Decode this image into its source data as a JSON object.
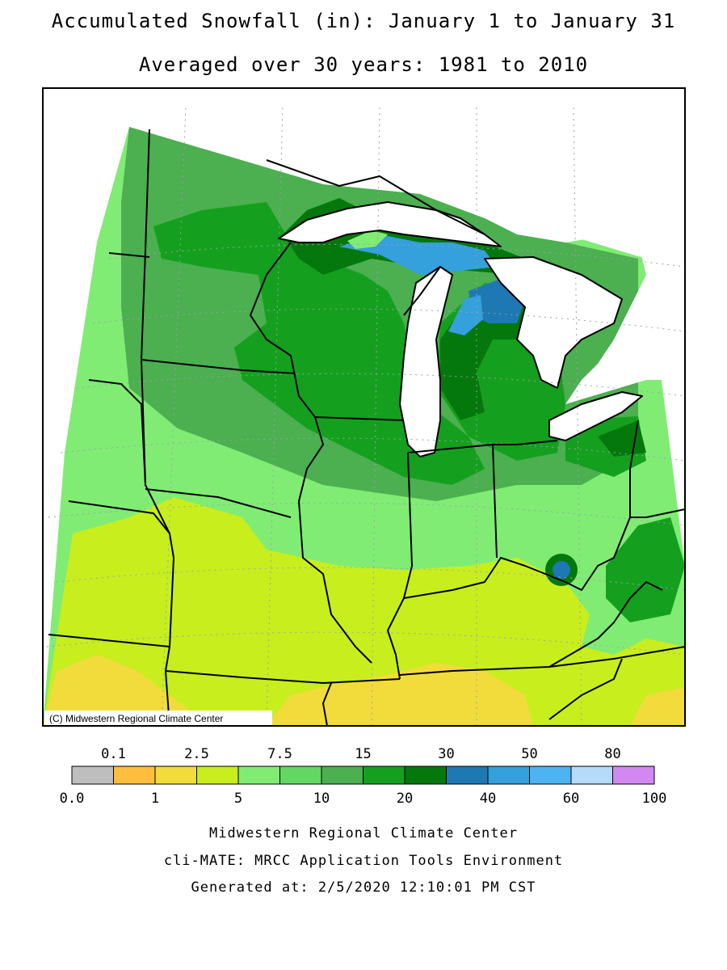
{
  "title_line1": "Accumulated Snowfall (in): January 1 to January 31",
  "title_line2": "Averaged over 30 years: 1981 to 2010",
  "copyright": "(C) Midwestern Regional Climate Center",
  "legend": {
    "bins": [
      {
        "color": "#bebebe"
      },
      {
        "color": "#ffbe3c"
      },
      {
        "color": "#f2dc3c"
      },
      {
        "color": "#c8ee1e"
      },
      {
        "color": "#80ec74"
      },
      {
        "color": "#62d862"
      },
      {
        "color": "#4caf50"
      },
      {
        "color": "#14a01e"
      },
      {
        "color": "#04780c"
      },
      {
        "color": "#1e78b4"
      },
      {
        "color": "#34a0dc"
      },
      {
        "color": "#4cb4f0"
      },
      {
        "color": "#b4dcfa"
      },
      {
        "color": "#d288f0"
      }
    ],
    "top_labels": [
      "0.1",
      "2.5",
      "7.5",
      "15",
      "30",
      "50",
      "80"
    ],
    "bottom_labels": [
      "0.0",
      "1",
      "5",
      "10",
      "20",
      "40",
      "60",
      "100"
    ]
  },
  "footer": {
    "org": "Midwestern Regional Climate Center",
    "tool": "cli-MATE: MRCC Application Tools Environment",
    "generated": "Generated at: 2/5/2020 12:10:01 PM CST"
  },
  "map_data": {
    "region": "Midwest United States",
    "variable": "Accumulated Snowfall (in)",
    "colors": {
      "lake": "#ffffff",
      "boundary": "#000000",
      "grid": "#9aa0b0",
      "frame": "#000000"
    },
    "regions": [
      {
        "bin": "0.1-1",
        "color": "#ffbe3c"
      },
      {
        "bin": "1-2.5",
        "color": "#f2dc3c"
      },
      {
        "bin": "2.5-5",
        "color": "#c8ee1e"
      },
      {
        "bin": "5-7.5",
        "color": "#80ec74"
      },
      {
        "bin": "7.5-10",
        "color": "#62d862"
      },
      {
        "bin": "10-15",
        "color": "#4caf50"
      },
      {
        "bin": "15-20",
        "color": "#14a01e"
      },
      {
        "bin": "20-30",
        "color": "#04780c"
      },
      {
        "bin": "30-40",
        "color": "#1e78b4"
      },
      {
        "bin": "40-50",
        "color": "#34a0dc"
      }
    ]
  }
}
